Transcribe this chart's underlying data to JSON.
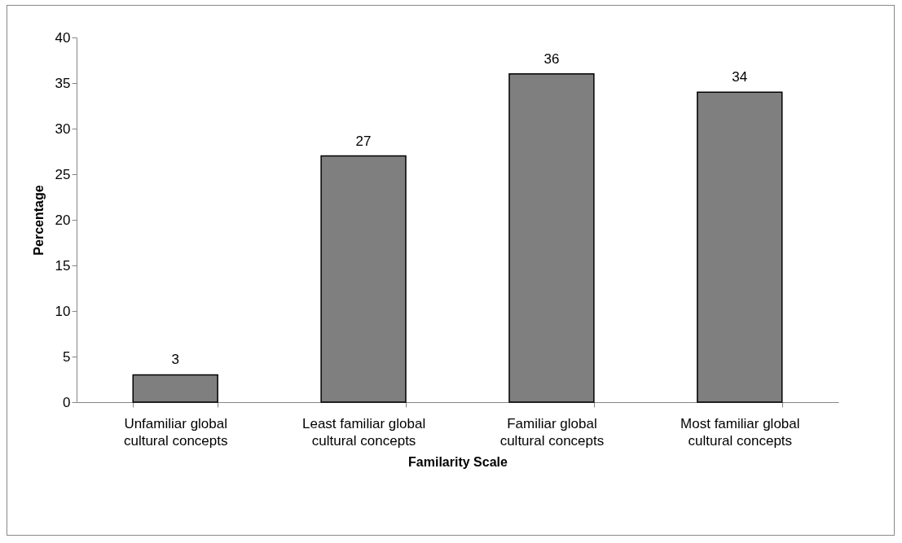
{
  "chart_data": {
    "type": "bar",
    "xlabel": "Familarity Scale",
    "ylabel": "Percentage",
    "categories": [
      "Unfamiliar global cultural concepts",
      "Least familiar global cultural concepts",
      "Familiar global cultural concepts",
      "Most familiar global cultural concepts"
    ],
    "values": [
      3,
      27,
      36,
      34
    ],
    "color": "#7f7f7f",
    "ylim": [
      0,
      40
    ],
    "yticks": [
      0,
      5,
      10,
      15,
      20,
      25,
      30,
      35,
      40
    ],
    "grid": false,
    "data_labels": true
  }
}
